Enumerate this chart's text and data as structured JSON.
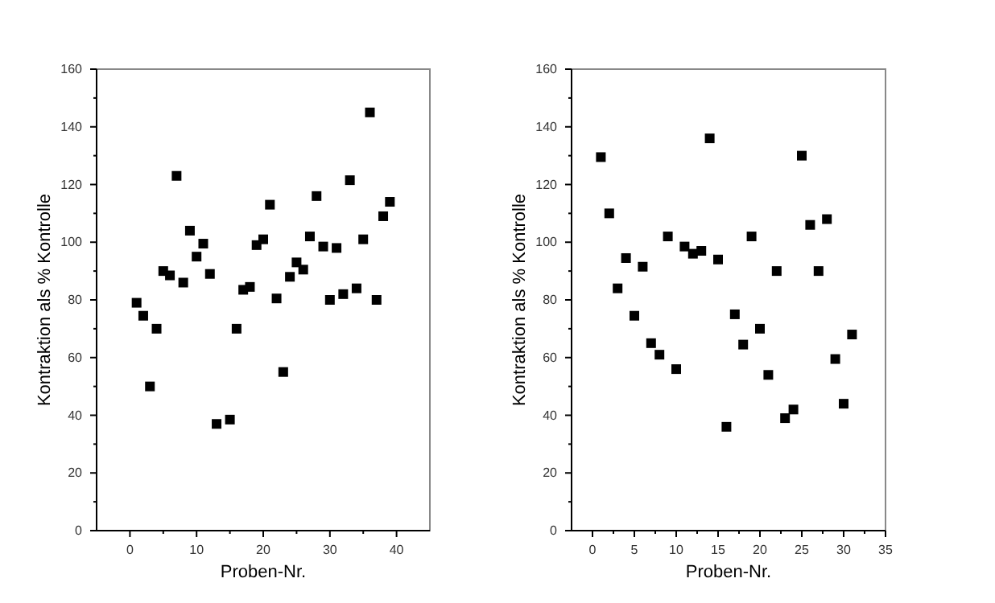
{
  "chart_data": [
    {
      "type": "scatter",
      "xlabel": "Proben-Nr.",
      "ylabel": "Kontraktion als % Kontrolle",
      "marker": "square",
      "grid": false,
      "xlim": [
        -5,
        45
      ],
      "xticks": [
        0,
        {
          "value": 5,
          "label": null
        },
        10,
        {
          "value": 15,
          "label": null
        },
        20,
        {
          "value": 25,
          "label": null
        },
        30,
        {
          "value": 35,
          "label": null
        },
        40
      ],
      "ylim": [
        0,
        160
      ],
      "yticks": [
        0,
        {
          "value": 10,
          "label": null
        },
        20,
        {
          "value": 30,
          "label": null
        },
        40,
        {
          "value": 50,
          "label": null
        },
        60,
        {
          "value": 70,
          "label": null
        },
        80,
        {
          "value": 90,
          "label": null
        },
        100,
        {
          "value": 110,
          "label": null
        },
        120,
        {
          "value": 130,
          "label": null
        },
        140,
        {
          "value": 150,
          "label": null
        },
        160
      ],
      "series": [
        {
          "color": "#000000",
          "x": [
            1,
            2,
            3,
            4,
            5,
            6,
            7,
            8,
            9,
            10,
            11,
            12,
            13,
            15,
            16,
            17,
            18,
            19,
            20,
            21,
            22,
            23,
            24,
            25,
            26,
            27,
            28,
            29,
            30,
            31,
            32,
            33,
            34,
            35,
            36,
            37,
            38,
            39
          ],
          "values": [
            79,
            74.5,
            50,
            70,
            90,
            88.5,
            123,
            86,
            104,
            95,
            99.5,
            89,
            37,
            38.5,
            70,
            83.5,
            84.5,
            99,
            101,
            113,
            80.5,
            55,
            88,
            93,
            90.5,
            102,
            116,
            98.5,
            80,
            98,
            82,
            121.5,
            84,
            101,
            145,
            80,
            109,
            114
          ]
        }
      ]
    },
    {
      "type": "scatter",
      "xlabel": "Proben-Nr.",
      "ylabel": "Kontraktion als % Kontrolle",
      "marker": "square",
      "grid": false,
      "xlim": [
        -2.5,
        35
      ],
      "xticks": [
        0,
        {
          "value": 2.5,
          "label": null
        },
        5,
        {
          "value": 7.5,
          "label": null
        },
        10,
        {
          "value": 12.5,
          "label": null
        },
        15,
        {
          "value": 17.5,
          "label": null
        },
        20,
        {
          "value": 22.5,
          "label": null
        },
        25,
        {
          "value": 27.5,
          "label": null
        },
        30,
        {
          "value": 32.5,
          "label": null
        },
        35
      ],
      "ylim": [
        0,
        160
      ],
      "yticks": [
        0,
        {
          "value": 10,
          "label": null
        },
        20,
        {
          "value": 30,
          "label": null
        },
        40,
        {
          "value": 50,
          "label": null
        },
        60,
        {
          "value": 70,
          "label": null
        },
        80,
        {
          "value": 90,
          "label": null
        },
        100,
        {
          "value": 110,
          "label": null
        },
        120,
        {
          "value": 130,
          "label": null
        },
        140,
        {
          "value": 150,
          "label": null
        },
        160
      ],
      "series": [
        {
          "color": "#000000",
          "x": [
            1,
            2,
            3,
            4,
            5,
            6,
            7,
            8,
            9,
            10,
            11,
            12,
            13,
            14,
            15,
            16,
            17,
            18,
            19,
            20,
            21,
            22,
            23,
            24,
            25,
            26,
            27,
            28,
            29,
            30,
            31
          ],
          "values": [
            129.5,
            110,
            84,
            94.5,
            74.5,
            91.5,
            65,
            61,
            102,
            56,
            98.5,
            96,
            97,
            136,
            94,
            36,
            75,
            64.5,
            102,
            70,
            54,
            90,
            39,
            42,
            130,
            106,
            90,
            108,
            59.5,
            44,
            68
          ]
        }
      ]
    }
  ]
}
